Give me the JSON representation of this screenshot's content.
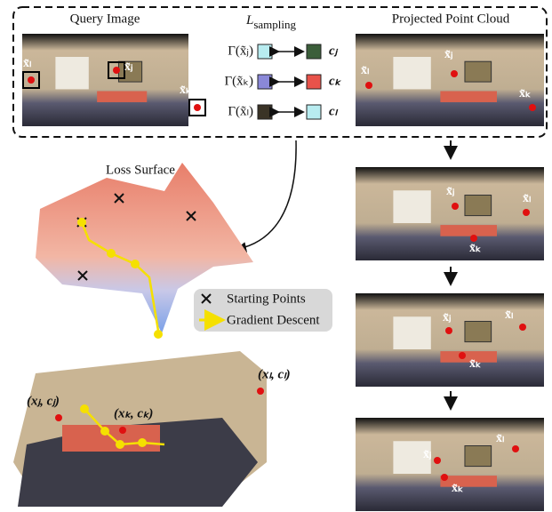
{
  "query": {
    "title": "Query Image",
    "labels": [
      "x̃ₗ",
      "x̃ⱼ",
      "x̃ₖ"
    ]
  },
  "sampling": {
    "title": "L",
    "subscript": "sampling",
    "rows": [
      {
        "lhs": "Γ(x̃ⱼ)",
        "rhs": "cⱼ"
      },
      {
        "lhs": "Γ(x̃ₖ)",
        "rhs": "cₖ"
      },
      {
        "lhs": "Γ(x̃ₗ)",
        "rhs": "cₗ"
      }
    ]
  },
  "projected": {
    "title": "Projected Point Cloud",
    "labels": [
      "x̃ₗ",
      "x̃ⱼ",
      "x̃ₖ"
    ]
  },
  "steps": [
    {
      "labels": [
        "x̃ⱼ",
        "x̃ₗ",
        "x̃ₖ"
      ]
    },
    {
      "labels": [
        "x̃ⱼ",
        "x̃ₗ",
        "x̃ₖ"
      ]
    },
    {
      "labels": [
        "x̃ₗ",
        "x̃ⱼ",
        "x̃ₖ"
      ]
    }
  ],
  "loss": {
    "title": "Loss Surface",
    "legend": [
      "Starting Points",
      "Gradient Descent"
    ]
  },
  "scene": {
    "labels": [
      "(xⱼ, cⱼ)",
      "(xₖ, cₖ)",
      "(xₗ, cₗ)"
    ]
  }
}
